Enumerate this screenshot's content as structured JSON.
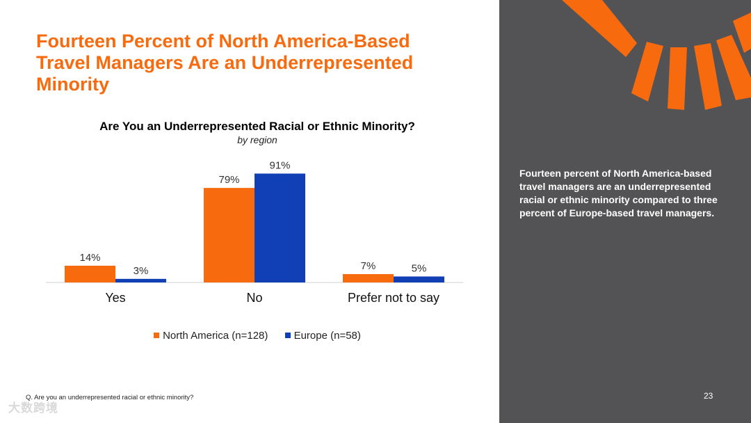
{
  "slide": {
    "title": "Fourteen Percent of North America-Based Travel Managers Are an Underrepresented Minority",
    "footnote": "Q. Are you an underrepresented racial or ethnic minority?",
    "side_text": "Fourteen percent of North America-based travel managers are an underrepresented racial or ethnic minority compared to three percent of Europe-based travel managers.",
    "page_number": "23",
    "watermark": "大数跨境"
  },
  "colors": {
    "accent": "#f86a0e",
    "europe": "#1140b6",
    "panel": "#535355"
  },
  "chart_data": {
    "type": "bar",
    "title": "Are You an Underrepresented Racial or Ethnic Minority?",
    "subtitle": "by region",
    "categories": [
      "Yes",
      "No",
      "Prefer not to say"
    ],
    "series": [
      {
        "name": "North America (n=128)",
        "values": [
          14,
          79,
          7
        ],
        "labels": [
          "14%",
          "79%",
          "7%"
        ]
      },
      {
        "name": "Europe (n=58)",
        "values": [
          3,
          91,
          5
        ],
        "labels": [
          "3%",
          "91%",
          "5%"
        ]
      }
    ],
    "ylim": [
      0,
      100
    ],
    "xlabel": "",
    "ylabel": "",
    "grid": false,
    "legend": "bottom"
  }
}
